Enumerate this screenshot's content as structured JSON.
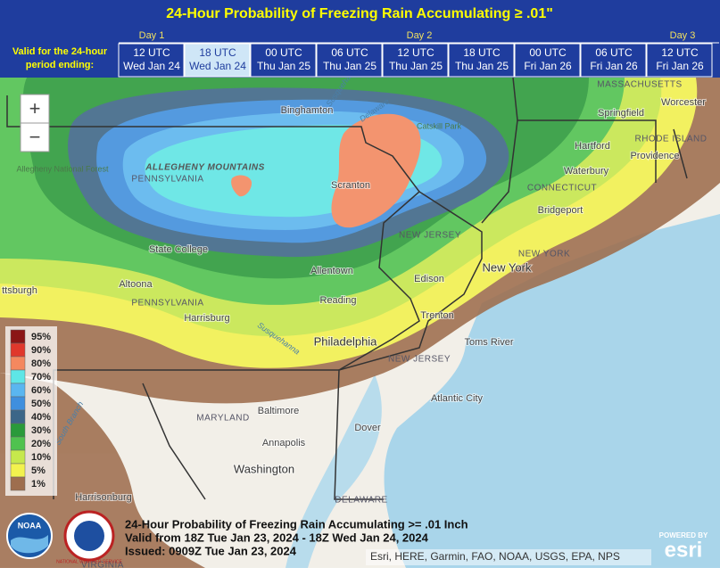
{
  "header": {
    "title": "24-Hour Probability of Freezing Rain Accumulating ≥ .01\"",
    "period_label": [
      "Valid for the 24-hour",
      "period ending:"
    ],
    "days": [
      "Day 1",
      "Day 2",
      "Day 3"
    ],
    "tabs": [
      {
        "time": "12 UTC",
        "date": "Wed Jan 24",
        "selected": false
      },
      {
        "time": "18 UTC",
        "date": "Wed Jan 24",
        "selected": true
      },
      {
        "time": "00 UTC",
        "date": "Thu Jan 25",
        "selected": false
      },
      {
        "time": "06 UTC",
        "date": "Thu Jan 25",
        "selected": false
      },
      {
        "time": "12 UTC",
        "date": "Thu Jan 25",
        "selected": false
      },
      {
        "time": "18 UTC",
        "date": "Thu Jan 25",
        "selected": false
      },
      {
        "time": "00 UTC",
        "date": "Fri Jan 26",
        "selected": false
      },
      {
        "time": "06 UTC",
        "date": "Fri Jan 26",
        "selected": false
      },
      {
        "time": "12 UTC",
        "date": "Fri Jan 26",
        "selected": false
      }
    ]
  },
  "map": {
    "zoom_in": "+",
    "zoom_out": "−",
    "labels": [
      "Susquehanna",
      "MASSACHUSETTS",
      "Worcester",
      "Binghamton",
      "Delaware",
      "Springfield",
      "Catskill Park",
      "RHODE ISLAND",
      "Hartford",
      "Providence",
      "Allegheny National Forest",
      "ALLEGHENY MOUNTAINS",
      "PENNSYLVANIA",
      "Waterbury",
      "Scranton",
      "CONNECTICUT",
      "Bridgeport",
      "NEW JERSEY",
      "State College",
      "NEW YORK",
      "New York",
      "Allentown",
      "Edison",
      "Altoona",
      "ttsburgh",
      "PENNSYLVANIA",
      "Reading",
      "Trenton",
      "Harrisburg",
      "Susquehanna",
      "Philadelphia",
      "Toms River",
      "NEW JERSEY",
      "Atlantic City",
      "Baltimore",
      "MARYLAND",
      "South Branch",
      "Annapolis",
      "Dover",
      "Washington",
      "DELAWARE",
      "Harrisonburg",
      "VIRGINIA"
    ],
    "legend": [
      {
        "label": "95%",
        "color": "#8b1616"
      },
      {
        "label": "90%",
        "color": "#e0382c"
      },
      {
        "label": "80%",
        "color": "#f4885f"
      },
      {
        "label": "70%",
        "color": "#5ee6e6"
      },
      {
        "label": "60%",
        "color": "#5ab6f0"
      },
      {
        "label": "50%",
        "color": "#3f8fde"
      },
      {
        "label": "40%",
        "color": "#3c6688"
      },
      {
        "label": "30%",
        "color": "#2a9a3a"
      },
      {
        "label": "20%",
        "color": "#4fc24f"
      },
      {
        "label": "10%",
        "color": "#c6e84c"
      },
      {
        "label": "5%",
        "color": "#f2f24e"
      },
      {
        "label": "1%",
        "color": "#9e6e4e"
      }
    ],
    "caption": [
      "24-Hour Probability of Freezing Rain Accumulating >= .01 Inch",
      "Valid from 18Z Tue Jan 23, 2024 - 18Z Wed Jan 24, 2024",
      "Issued: 0909Z Tue Jan 23, 2024"
    ],
    "attribution": "Esri, HERE, Garmin, FAO, NOAA, USGS, EPA, NPS",
    "esri": [
      "POWERED BY",
      "esri"
    ],
    "logos": [
      "NOAA",
      "NATIONAL WEATHER SERVICE"
    ]
  }
}
